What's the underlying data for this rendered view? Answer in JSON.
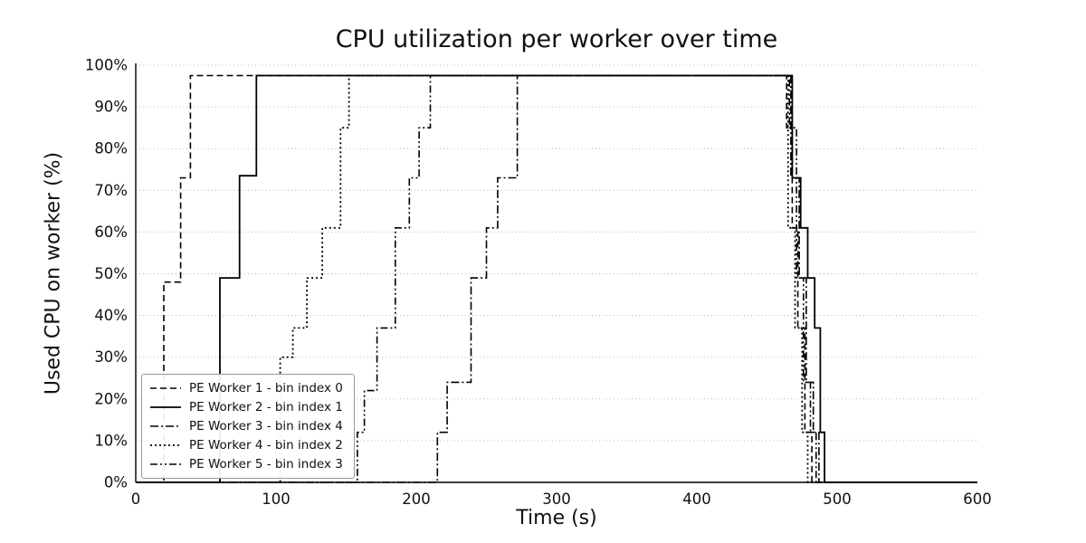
{
  "chart_data": {
    "type": "line",
    "title": "CPU utilization per worker over time",
    "xlabel": "Time (s)",
    "ylabel": "Used CPU on worker (%)",
    "xlim": [
      0,
      600
    ],
    "ylim": [
      0,
      100
    ],
    "xticks": [
      0,
      100,
      200,
      300,
      400,
      500,
      600
    ],
    "yticks": [
      0,
      10,
      20,
      30,
      40,
      50,
      60,
      70,
      80,
      90,
      100
    ],
    "ytick_suffix": "%",
    "grid": "horizontal-dotted",
    "grid_color": "#bbbbbb",
    "line_color": "#000000",
    "legend_position": "lower-left",
    "step_mode": "post",
    "series": [
      {
        "name": "PE Worker 1 - bin index 0",
        "dash": "7 4",
        "width": 1.6,
        "steps": [
          [
            0,
            0
          ],
          [
            20,
            48
          ],
          [
            32,
            73
          ],
          [
            39,
            97.5
          ],
          [
            464,
            85
          ],
          [
            468,
            61
          ],
          [
            472,
            37
          ],
          [
            477,
            12
          ],
          [
            482,
            0
          ]
        ]
      },
      {
        "name": "PE Worker 2 - bin index 1",
        "dash": "",
        "width": 1.8,
        "steps": [
          [
            0,
            0
          ],
          [
            60,
            49
          ],
          [
            74,
            73.5
          ],
          [
            86,
            97.5
          ],
          [
            468,
            73
          ],
          [
            474,
            61
          ],
          [
            479,
            49
          ],
          [
            484,
            37
          ],
          [
            488,
            12
          ],
          [
            491,
            0
          ]
        ]
      },
      {
        "name": "PE Worker 3 - bin index 4",
        "dash": "9 3 2 3",
        "width": 1.6,
        "steps": [
          [
            0,
            0
          ],
          [
            215,
            12
          ],
          [
            222,
            24
          ],
          [
            239,
            49
          ],
          [
            250,
            61
          ],
          [
            258,
            73
          ],
          [
            272,
            97.5
          ],
          [
            467,
            73
          ],
          [
            473,
            49
          ],
          [
            478,
            24
          ],
          [
            483,
            12
          ],
          [
            487,
            0
          ]
        ]
      },
      {
        "name": "PE Worker 4 - bin index 2",
        "dash": "2 3",
        "width": 1.8,
        "steps": [
          [
            0,
            0
          ],
          [
            103,
            30
          ],
          [
            112,
            37
          ],
          [
            122,
            49
          ],
          [
            133,
            61
          ],
          [
            146,
            85
          ],
          [
            152,
            97.5
          ],
          [
            465,
            61
          ],
          [
            470,
            37
          ],
          [
            475,
            12
          ],
          [
            479,
            0
          ]
        ]
      },
      {
        "name": "PE Worker 5 - bin index 3",
        "dash": "8 3 2 3 2 3",
        "width": 1.6,
        "steps": [
          [
            0,
            0
          ],
          [
            158,
            12
          ],
          [
            163,
            22
          ],
          [
            172,
            37
          ],
          [
            185,
            61
          ],
          [
            195,
            73
          ],
          [
            202,
            85
          ],
          [
            210,
            97.5
          ],
          [
            466,
            85
          ],
          [
            471,
            49
          ],
          [
            476,
            24
          ],
          [
            481,
            12
          ],
          [
            485,
            0
          ]
        ]
      }
    ]
  }
}
